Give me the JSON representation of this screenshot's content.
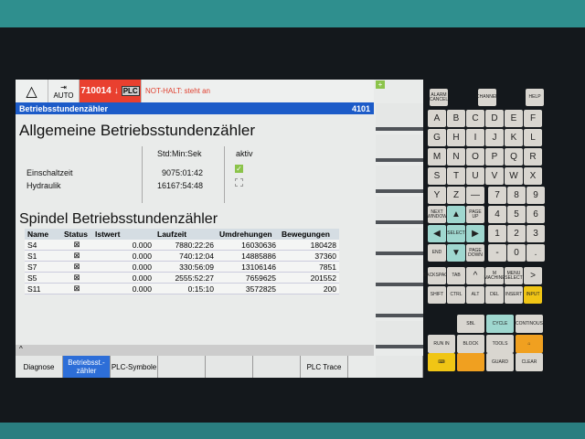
{
  "header": {
    "mode": "AUTO",
    "alarm_code": "710014",
    "alarm_arrow": "↓",
    "plc_badge": "PLC",
    "alarm_message": "NOT-HALT: steht an"
  },
  "title_bar": {
    "title": "Betriebsstundenzähler",
    "number": "4101"
  },
  "general": {
    "heading": "Allgemeine Betriebsstundenzähler",
    "col_time": "Std:Min:Sek",
    "col_active": "aktiv",
    "rows": [
      {
        "name": "Einschaltzeit",
        "time": "9075:01:42",
        "active": true
      },
      {
        "name": "Hydraulik",
        "time": "16167:54:48",
        "active": false
      }
    ]
  },
  "spindle": {
    "heading": "Spindel Betriebsstundenzähler",
    "columns": [
      "Name",
      "Status",
      "Istwert",
      "Laufzeit",
      "Umdrehungen",
      "Bewegungen"
    ],
    "rows": [
      [
        "S4",
        "⊠",
        "0.000",
        "7880:22:26",
        "16030636",
        "180428"
      ],
      [
        "S1",
        "⊠",
        "0.000",
        "740:12:04",
        "14885886",
        "37360"
      ],
      [
        "S7",
        "⊠",
        "0.000",
        "330:56:09",
        "13106146",
        "7851"
      ],
      [
        "S5",
        "⊠",
        "0.000",
        "2555:52:27",
        "7659625",
        "201552"
      ],
      [
        "S11",
        "⊠",
        "0.000",
        "0:15:10",
        "3572825",
        "200"
      ]
    ]
  },
  "softkeys": [
    "Diagnose",
    "Betriebsst.-zähler",
    "PLC-Symbole",
    "",
    "",
    "",
    "PLC Trace",
    ""
  ],
  "keypad": {
    "top": [
      "ALARM CANCEL",
      "CHANNEL",
      "HELP"
    ],
    "letters": [
      "A",
      "B",
      "C",
      "D",
      "E",
      "F",
      "G",
      "H",
      "I",
      "J",
      "K",
      "L",
      "M",
      "N",
      "O",
      "P",
      "Q",
      "R",
      "S",
      "T",
      "U",
      "V",
      "W",
      "X",
      "Y",
      "Z",
      "—"
    ],
    "digits": [
      "7",
      "8",
      "9",
      "4",
      "5",
      "6",
      "1",
      "2",
      "3",
      "-",
      "0",
      "."
    ],
    "nav": [
      "NEXT WINDOW",
      "▲",
      "PAGE UP",
      "◀",
      "SELECT",
      "▶",
      "END",
      "▼",
      "PAGE DOWN"
    ],
    "edit": [
      "BACKSPACE",
      "TAB",
      "^",
      "M MACHINE",
      "MENU SELECT",
      ">",
      "SHIFT",
      "CTRL",
      "ALT",
      "DEL",
      "INSERT",
      "INPUT"
    ],
    "mode": [
      "SBL",
      "CYCLE",
      "CONTINOUS",
      "RUN IN",
      "BLOCK",
      "TOOLS",
      "⌂",
      "⌨",
      "",
      "GUARD",
      "CLEAR"
    ]
  },
  "colors": {
    "accent": "#1c5bc8",
    "alarm": "#e9402f",
    "teal_key": "#9fd7cf",
    "input_key": "#f0c515"
  }
}
